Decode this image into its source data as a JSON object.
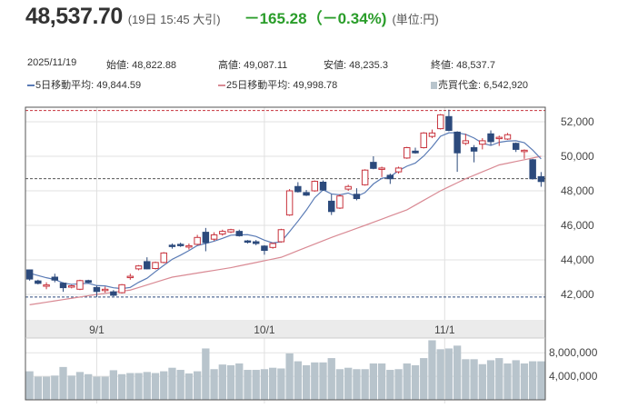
{
  "header": {
    "price": "48,537.70",
    "time": "(19日 15:45 大引)",
    "change": "－165.28（－0.34%)",
    "unit": "(単位:円)"
  },
  "info": {
    "date": "2025/11/19",
    "open": "始値: 48,822.88",
    "high": "高値: 49,087.11",
    "low": "安値: 48,235.3",
    "close": "終値: 48,537.7",
    "ma5": "5日移動平均: 49,844.59",
    "ma25": "25日移動平均: 49,998.78",
    "volume": "売買代金: 6,542,920"
  },
  "colors": {
    "up": "#c8323c",
    "down": "#2c4a7c",
    "ma5": "#5a7bb5",
    "ma25": "#d98a94",
    "volume": "#b8c4cc",
    "change": "#2a9d2a"
  },
  "chart_data": {
    "type": "candlestick",
    "price_axis": {
      "ylim": [
        40500,
        53000
      ],
      "ticks": [
        42000,
        44000,
        46000,
        48000,
        50000,
        52000
      ],
      "tick_labels": [
        "42,000",
        "44,000",
        "46,000",
        "48,000",
        "50,000",
        "52,000"
      ]
    },
    "volume_axis": {
      "ylim": [
        0,
        10500000
      ],
      "ticks": [
        4000000,
        8000000
      ],
      "tick_labels": [
        "4,000,000",
        "8,000,000"
      ]
    },
    "date_labels": [
      {
        "label": "9/1",
        "index": 8
      },
      {
        "label": "10/1",
        "index": 28
      },
      {
        "label": "11/1",
        "index": 49.5
      }
    ],
    "ref_lines": [
      {
        "value": 52650,
        "color": "#c8323c"
      },
      {
        "value": 48703,
        "color": "#555555"
      },
      {
        "value": 41850,
        "color": "#2c4a7c"
      }
    ],
    "ohlc": [
      [
        43420,
        43440,
        42800,
        42890
      ],
      [
        42780,
        42850,
        42580,
        42640
      ],
      [
        42500,
        42700,
        42300,
        42550
      ],
      [
        43000,
        43200,
        42700,
        42830
      ],
      [
        42650,
        42700,
        42150,
        42390
      ],
      [
        42450,
        42550,
        42350,
        42500
      ],
      [
        42300,
        42850,
        42250,
        42800
      ],
      [
        42800,
        42850,
        42650,
        42700
      ],
      [
        42400,
        42500,
        41850,
        42170
      ],
      [
        42250,
        42450,
        42100,
        42300
      ],
      [
        42150,
        42250,
        41900,
        41950
      ],
      [
        42100,
        42600,
        42050,
        42560
      ],
      [
        42980,
        43200,
        42850,
        43050
      ],
      [
        43480,
        43700,
        43400,
        43650
      ],
      [
        43900,
        44150,
        43450,
        43480
      ],
      [
        43500,
        43900,
        43450,
        43850
      ],
      [
        43850,
        44450,
        43800,
        44400
      ],
      [
        44850,
        44950,
        44650,
        44780
      ],
      [
        44900,
        45000,
        44750,
        44850
      ],
      [
        44770,
        44950,
        44600,
        44820
      ],
      [
        44900,
        45450,
        44850,
        45300
      ],
      [
        45600,
        45850,
        44500,
        45000
      ],
      [
        45200,
        45600,
        45100,
        45450
      ],
      [
        45500,
        45750,
        45400,
        45650
      ],
      [
        45620,
        45800,
        45550,
        45750
      ],
      [
        45650,
        45750,
        45350,
        45400
      ],
      [
        45100,
        45150,
        44950,
        45050
      ],
      [
        45050,
        45150,
        44850,
        44950
      ],
      [
        44800,
        44850,
        44300,
        44550
      ],
      [
        44720,
        45000,
        44650,
        44950
      ],
      [
        45050,
        45800,
        45000,
        45750
      ],
      [
        46600,
        48100,
        46550,
        48000
      ],
      [
        48250,
        48500,
        47900,
        47950
      ],
      [
        47900,
        48050,
        47700,
        47750
      ],
      [
        48000,
        48600,
        47950,
        48550
      ],
      [
        48500,
        48600,
        48000,
        48050
      ],
      [
        47400,
        47800,
        46600,
        46800
      ],
      [
        47000,
        47800,
        46950,
        47700
      ],
      [
        48100,
        48350,
        48000,
        48250
      ],
      [
        47800,
        48150,
        47450,
        47550
      ],
      [
        48350,
        49250,
        48300,
        49200
      ],
      [
        49650,
        50000,
        49250,
        49300
      ],
      [
        49280,
        49400,
        48800,
        49320
      ],
      [
        48900,
        49000,
        48400,
        48700
      ],
      [
        49100,
        49400,
        49000,
        49320
      ],
      [
        49900,
        50550,
        49850,
        50500
      ],
      [
        50300,
        50500,
        50150,
        50200
      ],
      [
        50500,
        51400,
        50450,
        51350
      ],
      [
        51150,
        51550,
        51050,
        51350
      ],
      [
        51600,
        52450,
        51550,
        52400
      ],
      [
        52300,
        52700,
        51450,
        51500
      ],
      [
        51400,
        51450,
        49100,
        50200
      ],
      [
        50750,
        51300,
        50650,
        50900
      ],
      [
        50500,
        50650,
        49650,
        50300
      ],
      [
        50700,
        51050,
        50400,
        50900
      ],
      [
        51300,
        51500,
        50650,
        50850
      ],
      [
        51050,
        51200,
        50600,
        51100
      ],
      [
        51000,
        51350,
        50950,
        51250
      ],
      [
        50750,
        50800,
        50250,
        50400
      ],
      [
        50300,
        50400,
        49850,
        50350
      ],
      [
        49800,
        49850,
        48650,
        48700
      ],
      [
        48823,
        49087,
        48235,
        48538
      ]
    ],
    "volume": [
      4850000,
      3940000,
      3940000,
      4120000,
      5580000,
      4120000,
      4730000,
      4360000,
      3940000,
      3940000,
      5030000,
      4360000,
      4550000,
      4550000,
      4730000,
      4550000,
      4850000,
      5450000,
      5090000,
      4480000,
      4850000,
      8730000,
      5210000,
      6000000,
      5880000,
      6180000,
      5090000,
      5090000,
      5210000,
      5450000,
      5330000,
      7880000,
      6550000,
      5880000,
      6360000,
      6360000,
      7090000,
      5210000,
      5450000,
      5210000,
      5210000,
      6180000,
      6180000,
      5090000,
      5210000,
      6180000,
      5880000,
      7090000,
      10120000,
      8600000,
      8730000,
      9210000,
      6900000,
      6900000,
      6060000,
      6730000,
      7090000,
      6180000,
      6730000,
      6180000,
      6550000,
      6542920
    ],
    "ma5_prior": [
      43300,
      43200,
      43350,
      43400
    ],
    "ma25_points": [
      [
        0,
        41400
      ],
      [
        8,
        42000
      ],
      [
        12,
        42250
      ],
      [
        17,
        43000
      ],
      [
        24,
        43550
      ],
      [
        28,
        43950
      ],
      [
        30,
        44150
      ],
      [
        36,
        45300
      ],
      [
        40,
        46000
      ],
      [
        45,
        46900
      ],
      [
        49,
        48000
      ],
      [
        52,
        48700
      ],
      [
        56,
        49500
      ],
      [
        61,
        50000
      ]
    ]
  }
}
